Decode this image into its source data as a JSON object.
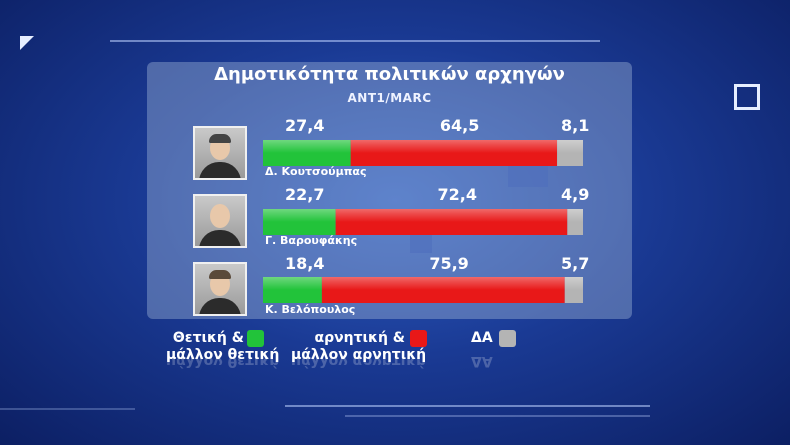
{
  "title": "Δημοτικότητα πολιτικών αρχηγών",
  "subtitle": "ANT1/MARC",
  "colors": {
    "positive": "#22c33a",
    "negative": "#e81818",
    "neutral": "#b4b4b4"
  },
  "chart_data": {
    "type": "bar",
    "stacked": true,
    "orientation": "horizontal",
    "title": "Δημοτικότητα πολιτικών αρχηγών",
    "subtitle": "ANT1/MARC",
    "categories": [
      "Δ. Κουτσούμπας",
      "Γ. Βαρουφάκης",
      "Κ. Βελόπουλος"
    ],
    "series": [
      {
        "name": "Θετική & μάλλον θετική",
        "values": [
          27.4,
          22.7,
          18.4
        ],
        "color": "#22c33a"
      },
      {
        "name": "αρνητική & μάλλον αρνητική",
        "values": [
          64.5,
          72.4,
          75.9
        ],
        "color": "#e81818"
      },
      {
        "name": "ΔΑ",
        "values": [
          8.1,
          4.9,
          5.7
        ],
        "color": "#b4b4b4"
      }
    ],
    "labels": [
      [
        "27,4",
        "64,5",
        "8,1"
      ],
      [
        "22,7",
        "72,4",
        "4,9"
      ],
      [
        "18,4",
        "75,9",
        "5,7"
      ]
    ],
    "xlim": [
      0,
      100
    ],
    "legend_position": "bottom"
  },
  "legend": {
    "positive_line1": "Θετική  &",
    "positive_line2": "μάλλον θετική",
    "negative_line1": "αρνητική  &",
    "negative_line2": "μάλλον αρνητική",
    "neutral": "ΔΑ"
  },
  "photos": [
    "person-koutsoumpas-icon",
    "person-varoufakis-icon",
    "person-velopoulos-icon"
  ]
}
